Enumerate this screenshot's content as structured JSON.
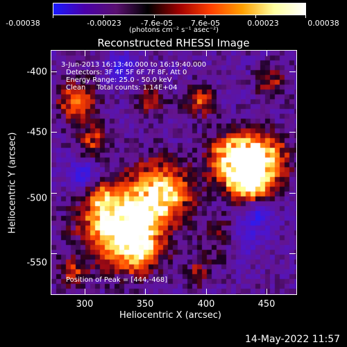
{
  "colorbar": {
    "ticks": [
      "-0.00038",
      "-0.00023",
      "-7.6e-05",
      "7.6e-05",
      "0.00023",
      "0.00038"
    ],
    "units": "(photons cm⁻² s⁻¹ asec⁻²)",
    "colors": [
      "#1a1aff",
      "#4b00a8",
      "#5a1070",
      "#000000",
      "#a00000",
      "#ff4000",
      "#ffa000",
      "#ffffa0",
      "#ffffff"
    ]
  },
  "image": {
    "title": "Reconstructed RHESSI Image",
    "info_lines": [
      "3-Jun-2013 16:13:40.000 to 16:19:40.000",
      "Detectors: 3F 4F 5F 6F 7F 8F, Att 0",
      "Energy Range: 25.0 - 50.0 keV",
      "Clean     Total counts: 1.14E+04"
    ],
    "peak_text": "Position of Peak = [444,-468]",
    "xlabel": "Heliocentric X (arcsec)",
    "ylabel": "Heliocentric Y (arcsec)",
    "xticks": [
      "300",
      "350",
      "400",
      "450"
    ],
    "yticks": [
      "-400",
      "-450",
      "-500",
      "-550"
    ],
    "xrange": [
      272,
      470
    ],
    "yrange": [
      -373,
      -575
    ],
    "timestamp": "14-May-2022 11:57"
  }
}
